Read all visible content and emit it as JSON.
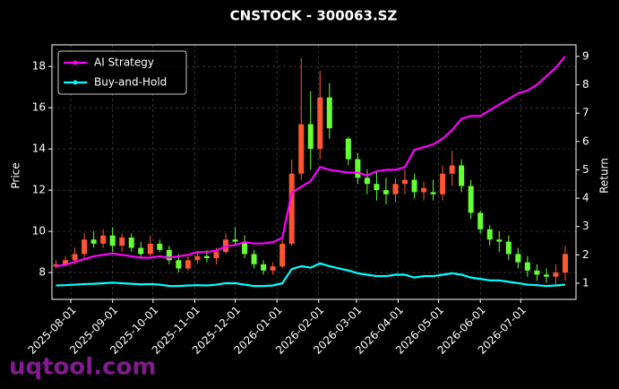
{
  "chart_data": {
    "type": "candlestick",
    "title": "CNSTOCK - 300063.SZ",
    "ylabel": "Price",
    "y2label": "Return",
    "watermark": "uqtool.com",
    "x": [
      "2025-07-21",
      "2025-07-28",
      "2025-08-04",
      "2025-08-11",
      "2025-08-18",
      "2025-08-25",
      "2025-09-01",
      "2025-09-08",
      "2025-09-15",
      "2025-09-22",
      "2025-09-29",
      "2025-10-06",
      "2025-10-13",
      "2025-10-20",
      "2025-10-27",
      "2025-11-03",
      "2025-11-10",
      "2025-11-17",
      "2025-11-24",
      "2025-12-01",
      "2025-12-08",
      "2025-12-15",
      "2025-12-22",
      "2025-12-29",
      "2026-01-05",
      "2026-01-12",
      "2026-01-19",
      "2026-01-26",
      "2026-02-02",
      "2026-02-09",
      "2026-02-23",
      "2026-03-02",
      "2026-03-09",
      "2026-03-16",
      "2026-03-23",
      "2026-03-30",
      "2026-04-06",
      "2026-04-13",
      "2026-04-20",
      "2026-04-27",
      "2026-05-04",
      "2026-05-11",
      "2026-05-18",
      "2026-05-25",
      "2026-06-01",
      "2026-06-08",
      "2026-06-15",
      "2026-06-22",
      "2026-06-29",
      "2026-07-06",
      "2026-07-13",
      "2026-07-20",
      "2026-07-27",
      "2026-08-03"
    ],
    "open": [
      8.3,
      8.4,
      8.6,
      8.9,
      9.6,
      9.4,
      9.8,
      9.3,
      9.7,
      9.2,
      8.9,
      9.4,
      9.1,
      8.6,
      8.2,
      8.6,
      8.8,
      8.7,
      9.0,
      9.6,
      9.5,
      8.9,
      8.4,
      8.1,
      8.3,
      9.4,
      12.8,
      15.2,
      14.0,
      16.5,
      14.5,
      13.5,
      12.6,
      12.3,
      12.0,
      11.8,
      12.3,
      12.5,
      11.9,
      11.9,
      11.8,
      12.8,
      13.2,
      12.2,
      10.9,
      10.1,
      9.6,
      9.5,
      8.9,
      8.5,
      8.1,
      7.9,
      7.8,
      8.0
    ],
    "high": [
      8.6,
      8.8,
      9.2,
      9.9,
      10.0,
      10.1,
      10.2,
      9.9,
      9.9,
      9.5,
      9.8,
      9.6,
      9.3,
      8.9,
      8.8,
      9.0,
      9.1,
      9.2,
      9.9,
      10.2,
      9.8,
      9.1,
      8.6,
      8.5,
      9.6,
      13.5,
      18.4,
      16.8,
      17.8,
      17.2,
      14.6,
      13.8,
      13.0,
      12.9,
      12.6,
      12.6,
      13.0,
      12.8,
      12.4,
      12.5,
      13.2,
      13.9,
      13.5,
      12.5,
      11.0,
      10.3,
      10.0,
      9.8,
      9.2,
      8.8,
      8.4,
      8.2,
      8.4,
      9.3
    ],
    "low": [
      8.2,
      8.3,
      8.4,
      8.7,
      9.2,
      9.2,
      9.0,
      9.0,
      9.0,
      8.7,
      8.8,
      9.0,
      8.4,
      8.0,
      8.1,
      8.4,
      8.5,
      8.4,
      8.9,
      9.3,
      8.7,
      8.2,
      7.9,
      7.9,
      8.2,
      9.3,
      12.5,
      13.0,
      13.5,
      14.5,
      13.2,
      12.3,
      11.8,
      11.5,
      11.3,
      11.4,
      11.8,
      11.6,
      11.5,
      11.5,
      11.5,
      12.2,
      11.9,
      10.6,
      9.9,
      9.3,
      9.0,
      8.6,
      8.2,
      7.8,
      7.6,
      7.5,
      7.4,
      7.6
    ],
    "close": [
      8.4,
      8.6,
      8.9,
      9.6,
      9.4,
      9.8,
      9.3,
      9.7,
      9.2,
      8.9,
      9.4,
      9.1,
      8.6,
      8.2,
      8.6,
      8.8,
      8.7,
      9.0,
      9.6,
      9.5,
      8.9,
      8.4,
      8.1,
      8.3,
      9.4,
      12.8,
      15.2,
      14.0,
      16.5,
      15.0,
      13.5,
      12.6,
      12.3,
      12.0,
      11.8,
      12.3,
      12.5,
      11.9,
      12.1,
      11.8,
      12.8,
      13.2,
      12.2,
      10.9,
      10.1,
      9.6,
      9.5,
      8.9,
      8.5,
      8.1,
      7.9,
      7.8,
      8.0,
      8.9
    ],
    "up_color": "#ff5533",
    "down_color": "#66ff33",
    "series": [
      {
        "name": "AI Strategy",
        "color": "#ff00ff",
        "axis": "y2",
        "values": [
          1.6,
          1.65,
          1.75,
          1.85,
          1.95,
          2.0,
          2.05,
          2.0,
          1.95,
          1.9,
          1.9,
          1.95,
          1.9,
          1.95,
          2.0,
          2.1,
          2.1,
          2.15,
          2.3,
          2.35,
          2.45,
          2.4,
          2.4,
          2.45,
          2.6,
          4.2,
          4.4,
          4.6,
          5.1,
          5.0,
          4.9,
          4.9,
          4.8,
          4.95,
          5.0,
          5.0,
          5.1,
          5.7,
          5.8,
          5.9,
          6.1,
          6.4,
          6.8,
          6.9,
          6.9,
          7.1,
          7.3,
          7.5,
          7.7,
          7.8,
          8.0,
          8.3,
          8.6,
          9.0
        ]
      },
      {
        "name": "Buy-and-Hold",
        "color": "#00ffff",
        "axis": "y2",
        "values": [
          0.92,
          0.93,
          0.95,
          0.97,
          0.98,
          1.0,
          1.02,
          1.0,
          0.98,
          0.96,
          0.97,
          0.95,
          0.9,
          0.9,
          0.92,
          0.93,
          0.92,
          0.95,
          1.0,
          1.0,
          0.95,
          0.9,
          0.9,
          0.92,
          1.0,
          1.5,
          1.6,
          1.55,
          1.7,
          1.6,
          1.45,
          1.35,
          1.3,
          1.25,
          1.25,
          1.3,
          1.3,
          1.2,
          1.25,
          1.25,
          1.3,
          1.35,
          1.3,
          1.2,
          1.15,
          1.1,
          1.1,
          1.05,
          1.0,
          0.95,
          0.93,
          0.9,
          0.92,
          0.95
        ]
      }
    ],
    "xlim": [
      "2025-07-18",
      "2026-08-11"
    ],
    "xticks": [
      "2025-08-01",
      "2025-09-01",
      "2025-10-01",
      "2025-11-01",
      "2025-12-01",
      "2026-01-01",
      "2026-02-01",
      "2026-03-01",
      "2026-04-01",
      "2026-05-01",
      "2026-06-01",
      "2026-07-01"
    ],
    "ylim": [
      6.7,
      19.05
    ],
    "yticks": [
      8,
      10,
      12,
      14,
      16,
      18
    ],
    "y2lim": [
      0.43,
      9.41
    ],
    "y2ticks": [
      1,
      2,
      3,
      4,
      5,
      6,
      7,
      8,
      9
    ],
    "grid": true,
    "legend": "upper left"
  }
}
